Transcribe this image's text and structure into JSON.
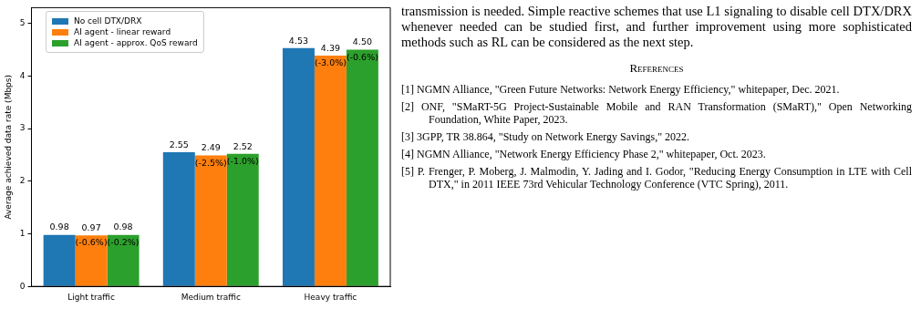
{
  "chart_data": {
    "type": "bar",
    "ylabel": "Average achieved data rate (Mbps)",
    "categories": [
      "Light traffic",
      "Medium traffic",
      "Heavy traffic"
    ],
    "series": [
      {
        "name": "No cell DTX/DRX",
        "color": "#1f77b4",
        "values": [
          0.98,
          2.55,
          4.53
        ],
        "value_labels": [
          "0.98",
          "2.55",
          "4.53"
        ]
      },
      {
        "name": "AI agent - linear reward",
        "color": "#ff7f0e",
        "values": [
          0.97,
          2.49,
          4.39
        ],
        "value_labels": [
          "0.97",
          "2.49",
          "4.39"
        ]
      },
      {
        "name": "AI agent - approx. QoS reward",
        "color": "#2ca02c",
        "values": [
          0.98,
          2.52,
          4.5
        ],
        "value_labels": [
          "0.98",
          "2.52",
          "4.50"
        ]
      }
    ],
    "ylim": [
      0,
      5.3
    ],
    "yticks": [
      0,
      1,
      2,
      3,
      4,
      5
    ],
    "grid": false,
    "legend": "top left",
    "annotations": [
      "(-0.6%)",
      "(-0.2%)",
      "(-2.5%)",
      "(-1.0%)",
      "(-3.0%)",
      "(-0.6%)",
      "transmission is needed. Simple reactive schemes that use L1 signaling to disable cell DTX/DRX whenever needed can be studied first, and further improvement using more sophisticated methods such as RL can be considered as the next step.",
      "References",
      "[1] NGMN Alliance, \"Green Future Networks: Network Energy Efficiency,\" whitepaper, Dec. 2021.",
      "[2] ONF, \"SMaRT-5G Project-Sustainable Mobile and RAN Transformation (SMaRT),\" Open Networking Foundation, White Paper, 2023.",
      "[3] 3GPP, TR 38.864, \"Study on Network Energy Savings,\" 2022.",
      "[4] NGMN Alliance, \"Network Energy Efficiency Phase 2,\" whitepaper, Oct. 2023.",
      "[5] P. Frenger, P. Moberg, J. Malmodin, Y. Jading and I. Godor, \"Reducing Energy Consumption in LTE with Cell DTX,\" in 2011 IEEE 73rd Vehicular Technology Conference (VTC Spring), 2011."
    ]
  }
}
